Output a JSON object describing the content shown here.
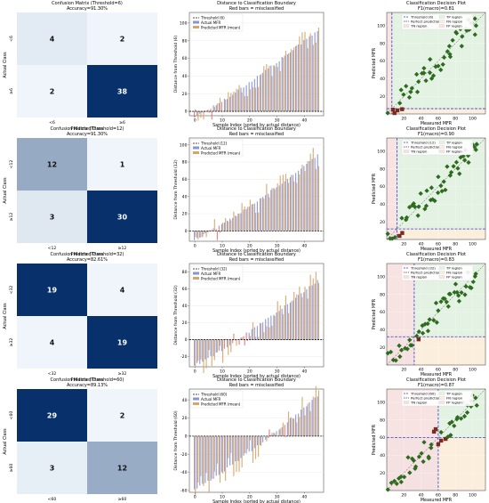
{
  "rows": [
    {
      "threshold": 6,
      "cm": {
        "title": "Confusion Matrix (Threshold=6)",
        "subtitle": "Accuracy=91.30%",
        "xlabel": "Predicted Class",
        "ylabel": "Actual Class",
        "tick_low": "<6",
        "tick_high": "≥6",
        "values": [
          [
            4,
            2
          ],
          [
            2,
            38
          ]
        ]
      },
      "dist": {
        "title": "Distance to Classification Boundary",
        "subtitle": "Red bars = misclassified",
        "xlabel": "Sample Index (sorted by actual distance)",
        "ylabel": "Distance from Threshold (6)",
        "legend": [
          "Threshold (6)",
          "Actual MFR",
          "Predicted MFR (mean)"
        ],
        "xticks": [
          0,
          10,
          20,
          30,
          40
        ],
        "yticks": [
          0,
          20,
          40,
          60,
          80,
          100
        ],
        "ylim": [
          -5,
          112
        ],
        "n": 46,
        "actual_range": [
          -6,
          92
        ],
        "pred_noise": 14,
        "neg_count": 6
      },
      "dec": {
        "title": "Classification Decision Plot",
        "subtitle": "F1(macro)=0.81",
        "xlabel": "Measured MFR",
        "ylabel": "Predicted MFR",
        "legend": [
          "Threshold (6)",
          "Perfect prediction",
          "TN region",
          "TP region",
          "FN region",
          "FP region"
        ],
        "ticks": [
          20,
          40,
          60,
          80,
          100
        ],
        "lim": [
          0,
          115
        ],
        "threshold": 6
      }
    },
    {
      "threshold": 12,
      "cm": {
        "title": "Confusion Matrix (Threshold=12)",
        "subtitle": "Accuracy=91.30%",
        "xlabel": "Predicted Class",
        "ylabel": "Actual Class",
        "tick_low": "<12",
        "tick_high": "≥12",
        "values": [
          [
            12,
            1
          ],
          [
            3,
            30
          ]
        ]
      },
      "dist": {
        "title": "Distance to Classification Boundary",
        "subtitle": "Red bars = misclassified",
        "xlabel": "Sample Index (sorted by actual distance)",
        "ylabel": "Distance from Threshold (12)",
        "legend": [
          "Threshold (12)",
          "Actual MFR",
          "Predicted MFR (mean)"
        ],
        "xticks": [
          0,
          10,
          20,
          30,
          40
        ],
        "yticks": [
          0,
          20,
          40,
          60,
          80,
          100
        ],
        "ylim": [
          -12,
          108
        ],
        "n": 46,
        "actual_range": [
          -10,
          88
        ],
        "pred_noise": 14,
        "neg_count": 13
      },
      "dec": {
        "title": "Classification Decision Plot",
        "subtitle": "F1(macro)=0.90",
        "xlabel": "Measured MFR",
        "ylabel": "Predicted MFR",
        "legend": [
          "Threshold (12)",
          "Perfect prediction",
          "TN region",
          "TP region",
          "FN region",
          "FP region"
        ],
        "ticks": [
          20,
          40,
          60,
          80,
          100
        ],
        "lim": [
          0,
          115
        ],
        "threshold": 12
      }
    },
    {
      "threshold": 32,
      "cm": {
        "title": "Confusion Matrix (Threshold=32)",
        "subtitle": "Accuracy=82.61%",
        "xlabel": "Predicted Class",
        "ylabel": "Actual Class",
        "tick_low": "<32",
        "tick_high": "≥32",
        "values": [
          [
            19,
            4
          ],
          [
            4,
            19
          ]
        ]
      },
      "dist": {
        "title": "Distance to Classification Boundary",
        "subtitle": "Red bars = misclassified",
        "xlabel": "Sample Index (sorted by actual distance)",
        "ylabel": "Distance from Threshold (32)",
        "legend": [
          "Threshold (32)",
          "Actual MFR",
          "Predicted MFR (mean)"
        ],
        "xticks": [
          0,
          10,
          20,
          30,
          40
        ],
        "yticks": [
          -20,
          0,
          20,
          40,
          60,
          80
        ],
        "ylim": [
          -32,
          90
        ],
        "n": 46,
        "actual_range": [
          -30,
          70
        ],
        "pred_noise": 14,
        "neg_count": 23
      },
      "dec": {
        "title": "Classification Decision Plot",
        "subtitle": "F1(macro)=0.83",
        "xlabel": "Measured MFR",
        "ylabel": "Predicted MFR",
        "legend": [
          "Threshold (32)",
          "Perfect prediction",
          "TN region",
          "TP region",
          "FN region",
          "FP region"
        ],
        "ticks": [
          20,
          40,
          60,
          80,
          100
        ],
        "lim": [
          0,
          115
        ],
        "threshold": 32
      }
    },
    {
      "threshold": 60,
      "cm": {
        "title": "Confusion Matrix (Threshold=60)",
        "subtitle": "Accuracy=89.13%",
        "xlabel": "Predicted Class",
        "ylabel": "Actual Class",
        "tick_low": "<60",
        "tick_high": "≥60",
        "values": [
          [
            29,
            2
          ],
          [
            3,
            12
          ]
        ]
      },
      "dist": {
        "title": "Distance to Classification Boundary",
        "subtitle": "Red bars = misclassified",
        "xlabel": "Sample Index (sorted by actual distance)",
        "ylabel": "Distance from Threshold (60)",
        "legend": [
          "Threshold (60)",
          "Actual MFR",
          "Predicted MFR (mean)"
        ],
        "xticks": [
          0,
          10,
          20,
          30,
          40
        ],
        "yticks": [
          -60,
          -40,
          -20,
          0,
          20,
          40
        ],
        "ylim": [
          -62,
          52
        ],
        "n": 46,
        "actual_range": [
          -58,
          44
        ],
        "pred_noise": 14,
        "neg_count": 31
      },
      "dec": {
        "title": "Classification Decision Plot",
        "subtitle": "F1(macro)=0.87",
        "xlabel": "Measured MFR",
        "ylabel": "Predicted MFR",
        "legend": [
          "Threshold (60)",
          "Perfect prediction",
          "TN region",
          "TP region",
          "FN region",
          "FP region"
        ],
        "ticks": [
          20,
          40,
          60,
          80,
          100
        ],
        "lim": [
          0,
          115
        ],
        "threshold": 60
      }
    }
  ],
  "colors": {
    "cm_dark": "#0b2d6b",
    "cm_light": "#aacde8",
    "cm_faint": "#e3eef8",
    "actual_bar": "#8a93d4",
    "pred_bar": "#d4a66a",
    "miscls_bar": "#e07a78",
    "threshold_line": "#3a3fc8",
    "tn_region": "#f5e1e1",
    "tp_region": "#e3f2e3",
    "fn_region": "#fbeedd",
    "fp_region": "#f8e3e3",
    "correct_marker": "#2d6b1e",
    "wrong_marker": "#7a2b20"
  }
}
